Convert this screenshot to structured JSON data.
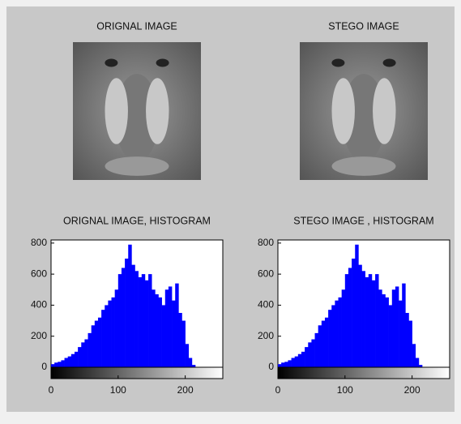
{
  "chart_data": [
    {
      "type": "image",
      "title": "ORIGNAL IMAGE"
    },
    {
      "type": "image",
      "title": "STEGO IMAGE"
    },
    {
      "type": "histogram",
      "title": "ORIGNAL IMAGE, HISTOGRAM",
      "color": "#0000ff",
      "bins": [
        0,
        5,
        10,
        15,
        20,
        25,
        30,
        35,
        40,
        45,
        50,
        55,
        60,
        65,
        70,
        75,
        80,
        85,
        90,
        95,
        100,
        105,
        110,
        115,
        120,
        125,
        130,
        135,
        140,
        145,
        150,
        155,
        160,
        165,
        170,
        175,
        180,
        185,
        190,
        195,
        200,
        205,
        210,
        215,
        220,
        225,
        230,
        235,
        240,
        245,
        250,
        255
      ],
      "counts": [
        20,
        30,
        35,
        45,
        60,
        70,
        85,
        100,
        130,
        160,
        180,
        220,
        270,
        300,
        320,
        370,
        400,
        430,
        450,
        500,
        600,
        640,
        700,
        790,
        660,
        620,
        580,
        600,
        560,
        600,
        500,
        470,
        450,
        400,
        500,
        520,
        430,
        540,
        350,
        300,
        150,
        60,
        15,
        0,
        0,
        0,
        0,
        0,
        0,
        0,
        0
      ],
      "xlim": [
        0,
        256
      ],
      "ylim": [
        0,
        820
      ],
      "xticks": [
        0,
        100,
        200
      ],
      "yticks": [
        0,
        200,
        400,
        600,
        800
      ]
    },
    {
      "type": "histogram",
      "title": "STEGO IMAGE , HISTOGRAM",
      "color": "#0000ff",
      "bins": [
        0,
        5,
        10,
        15,
        20,
        25,
        30,
        35,
        40,
        45,
        50,
        55,
        60,
        65,
        70,
        75,
        80,
        85,
        90,
        95,
        100,
        105,
        110,
        115,
        120,
        125,
        130,
        135,
        140,
        145,
        150,
        155,
        160,
        165,
        170,
        175,
        180,
        185,
        190,
        195,
        200,
        205,
        210,
        215,
        220,
        225,
        230,
        235,
        240,
        245,
        250,
        255
      ],
      "counts": [
        20,
        30,
        35,
        45,
        60,
        70,
        85,
        100,
        130,
        160,
        180,
        220,
        270,
        300,
        320,
        370,
        400,
        430,
        450,
        500,
        600,
        640,
        700,
        790,
        660,
        620,
        580,
        600,
        560,
        600,
        500,
        470,
        450,
        400,
        500,
        520,
        430,
        540,
        350,
        300,
        150,
        60,
        15,
        0,
        0,
        0,
        0,
        0,
        0,
        0,
        0
      ],
      "xlim": [
        0,
        256
      ],
      "ylim": [
        0,
        820
      ],
      "xticks": [
        0,
        100,
        200
      ],
      "yticks": [
        0,
        200,
        400,
        600,
        800
      ]
    }
  ]
}
